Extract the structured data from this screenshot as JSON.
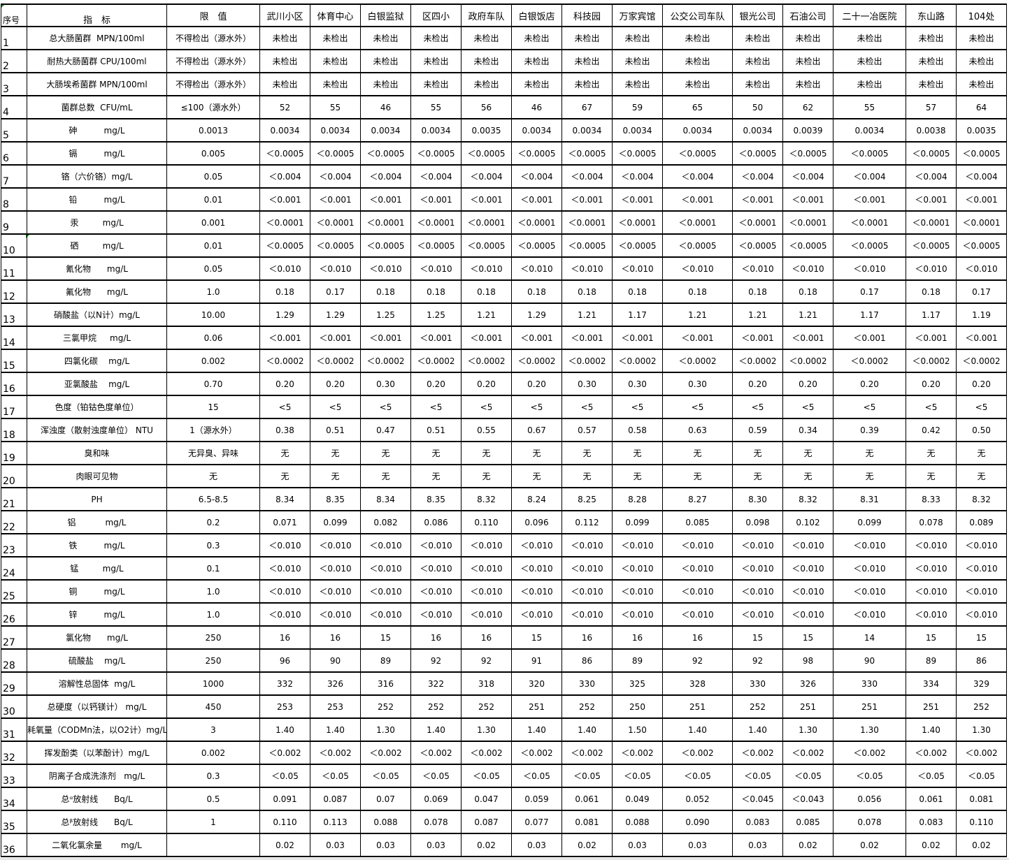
{
  "header": {
    "no": "序号",
    "indicator": "指　标",
    "limit": "限　值",
    "sites": [
      "武川小区",
      "体育中心",
      "白银监狱",
      "区四小",
      "政府车队",
      "白银饭店",
      "科技园",
      "万家宾馆",
      "公交公司车队",
      "银光公司",
      "石油公司",
      "二十一冶医院",
      "东山路",
      "104处"
    ]
  },
  "rows": [
    {
      "no": "1",
      "indicator": "总大肠菌群  MPN/100ml",
      "limit": "不得检出（源水外）",
      "values": [
        "未检出",
        "未检出",
        "未检出",
        "未检出",
        "未检出",
        "未检出",
        "未检出",
        "未检出",
        "未检出",
        "未检出",
        "未检出",
        "未检出",
        "未检出",
        "未检出"
      ]
    },
    {
      "no": "2",
      "indicator": "耐热大肠菌群 CPU/100ml",
      "limit": "不得检出（源水外）",
      "values": [
        "未检出",
        "未检出",
        "未检出",
        "未检出",
        "未检出",
        "未检出",
        "未检出",
        "未检出",
        "未检出",
        "未检出",
        "未检出",
        "未检出",
        "未检出",
        "未检出"
      ]
    },
    {
      "no": "3",
      "indicator": "大肠埃希菌群 MPN/100ml",
      "limit": "不得检出（源水外）",
      "values": [
        "未检出",
        "未检出",
        "未检出",
        "未检出",
        "未检出",
        "未检出",
        "未检出",
        "未检出",
        "未检出",
        "未检出",
        "未检出",
        "未检出",
        "未检出",
        "未检出"
      ]
    },
    {
      "no": "4",
      "indicator": "菌群总数  CFU/mL",
      "limit": "≤100（源水外）",
      "values": [
        "52",
        "55",
        "46",
        "55",
        "56",
        "46",
        "67",
        "59",
        "65",
        "50",
        "62",
        "55",
        "57",
        "64"
      ]
    },
    {
      "no": "5",
      "indicator": "砷          mg/L",
      "limit": "0.0013",
      "values": [
        "0.0034",
        "0.0034",
        "0.0034",
        "0.0034",
        "0.0035",
        "0.0034",
        "0.0034",
        "0.0034",
        "0.0034",
        "0.0034",
        "0.0039",
        "0.0034",
        "0.0038",
        "0.0035"
      ]
    },
    {
      "no": "6",
      "indicator": "镉          mg/L",
      "limit": "0.005",
      "values": [
        "＜0.0005",
        "＜0.0005",
        "＜0.0005",
        "＜0.0005",
        "＜0.0005",
        "＜0.0005",
        "＜0.0005",
        "＜0.0005",
        "＜0.0005",
        "＜0.0005",
        "＜0.0005",
        "＜0.0005",
        "＜0.0005",
        "＜0.0005"
      ]
    },
    {
      "no": "7",
      "indicator": "铬（六价铬）mg/L",
      "limit": "0.05",
      "values": [
        "＜0.004",
        "＜0.004",
        "＜0.004",
        "＜0.004",
        "＜0.004",
        "＜0.004",
        "＜0.004",
        "＜0.004",
        "＜0.004",
        "＜0.004",
        "＜0.004",
        "＜0.004",
        "＜0.004",
        "＜0.004"
      ]
    },
    {
      "no": "8",
      "indicator": "铅          mg/L",
      "limit": "0.01",
      "values": [
        "＜0.001",
        "＜0.001",
        "＜0.001",
        "＜0.001",
        "＜0.001",
        "＜0.001",
        "＜0.001",
        "＜0.001",
        "＜0.001",
        "＜0.001",
        "＜0.001",
        "＜0.001",
        "＜0.001",
        "＜0.001"
      ]
    },
    {
      "no": "9",
      "indicator": "汞         mg/L",
      "limit": "0.001",
      "values": [
        "＜0.0001",
        "＜0.0001",
        "＜0.0001",
        "＜0.0001",
        "＜0.0001",
        "＜0.0001",
        "＜0.0001",
        "＜0.0001",
        "＜0.0001",
        "＜0.0001",
        "＜0.0001",
        "＜0.0001",
        "＜0.0001",
        "＜0.0001"
      ]
    },
    {
      "no": "10",
      "indicator": "硒         mg/L",
      "limit": "0.01",
      "values": [
        "＜0.0005",
        "＜0.0005",
        "＜0.0005",
        "＜0.0005",
        "＜0.0005",
        "＜0.0005",
        "＜0.0005",
        "＜0.0005",
        "＜0.0005",
        "＜0.0005",
        "＜0.0005",
        "＜0.0005",
        "＜0.0005",
        "＜0.0005"
      ]
    },
    {
      "no": "11",
      "indicator": "氰化物      mg/L",
      "limit": "0.05",
      "values": [
        "＜0.010",
        "＜0.010",
        "＜0.010",
        "＜0.010",
        "＜0.010",
        "＜0.010",
        "＜0.010",
        "＜0.010",
        "＜0.010",
        "＜0.010",
        "＜0.010",
        "＜0.010",
        "＜0.010",
        "＜0.010"
      ]
    },
    {
      "no": "12",
      "indicator": "氟化物      mg/L",
      "limit": "1.0",
      "values": [
        "0.18",
        "0.17",
        "0.18",
        "0.18",
        "0.18",
        "0.18",
        "0.18",
        "0.18",
        "0.18",
        "0.18",
        "0.18",
        "0.17",
        "0.18",
        "0.17"
      ]
    },
    {
      "no": "13",
      "indicator": "硝酸盐（以N计）mg/L",
      "limit": "10.00",
      "values": [
        "1.29",
        "1.29",
        "1.25",
        "1.25",
        "1.21",
        "1.29",
        "1.21",
        "1.17",
        "1.21",
        "1.21",
        "1.21",
        "1.17",
        "1.17",
        "1.19"
      ]
    },
    {
      "no": "14",
      "indicator": "三氯甲烷     mg/L",
      "limit": "0.06",
      "values": [
        "＜0.001",
        "＜0.001",
        "＜0.001",
        "＜0.001",
        "＜0.001",
        "＜0.001",
        "＜0.001",
        "＜0.001",
        "＜0.001",
        "＜0.001",
        "＜0.001",
        "＜0.001",
        "＜0.001",
        "＜0.001"
      ]
    },
    {
      "no": "15",
      "indicator": "四氯化碳    mg/L",
      "limit": "0.002",
      "values": [
        "＜0.0002",
        "＜0.0002",
        "＜0.0002",
        "＜0.0002",
        "＜0.0002",
        "＜0.0002",
        "＜0.0002",
        "＜0.0002",
        "＜0.0002",
        "＜0.0002",
        "＜0.0002",
        "＜0.0002",
        "＜0.0002",
        "＜0.0002"
      ]
    },
    {
      "no": "16",
      "indicator": "亚氯酸盐    mg/L",
      "limit": "0.70",
      "values": [
        "0.20",
        "0.20",
        "0.30",
        "0.20",
        "0.20",
        "0.20",
        "0.30",
        "0.30",
        "0.30",
        "0.20",
        "0.20",
        "0.20",
        "0.20",
        "0.20"
      ]
    },
    {
      "no": "17",
      "indicator": "色度（铂钴色度单位）",
      "limit": "15",
      "values": [
        "<5",
        "<5",
        "<5",
        "<5",
        "<5",
        "<5",
        "<5",
        "<5",
        "<5",
        "<5",
        "<5",
        "<5",
        "<5",
        "<5"
      ]
    },
    {
      "no": "18",
      "indicator": "浑浊度（散射浊度单位） NTU",
      "limit": "1（源水外）",
      "values": [
        "0.38",
        "0.51",
        "0.47",
        "0.51",
        "0.55",
        "0.67",
        "0.57",
        "0.58",
        "0.63",
        "0.59",
        "0.34",
        "0.39",
        "0.42",
        "0.50"
      ]
    },
    {
      "no": "19",
      "indicator": "臭和味",
      "limit": "无异臭、异味",
      "values": [
        "无",
        "无",
        "无",
        "无",
        "无",
        "无",
        "无",
        "无",
        "无",
        "无",
        "无",
        "无",
        "无",
        "无"
      ]
    },
    {
      "no": "20",
      "indicator": "肉眼可见物",
      "limit": "无",
      "values": [
        "无",
        "无",
        "无",
        "无",
        "无",
        "无",
        "无",
        "无",
        "无",
        "无",
        "无",
        "无",
        "无",
        "无"
      ]
    },
    {
      "no": "21",
      "indicator": "PH",
      "limit": "6.5-8.5",
      "values": [
        "8.34",
        "8.35",
        "8.34",
        "8.35",
        "8.32",
        "8.24",
        "8.25",
        "8.28",
        "8.27",
        "8.30",
        "8.32",
        "8.31",
        "8.33",
        "8.32"
      ]
    },
    {
      "no": "22",
      "indicator": "铝           mg/L",
      "limit": "0.2",
      "values": [
        "0.071",
        "0.099",
        "0.082",
        "0.086",
        "0.110",
        "0.096",
        "0.112",
        "0.099",
        "0.085",
        "0.098",
        "0.102",
        "0.099",
        "0.078",
        "0.089"
      ]
    },
    {
      "no": "23",
      "indicator": "铁          mg/L",
      "limit": "0.3",
      "values": [
        "＜0.010",
        "＜0.010",
        "＜0.010",
        "＜0.010",
        "＜0.010",
        "＜0.010",
        "＜0.010",
        "＜0.010",
        "＜0.010",
        "＜0.010",
        "＜0.010",
        "＜0.010",
        "＜0.010",
        "＜0.010"
      ]
    },
    {
      "no": "24",
      "indicator": "锰         mg/L",
      "limit": "0.1",
      "values": [
        "＜0.010",
        "＜0.010",
        "＜0.010",
        "＜0.010",
        "＜0.010",
        "＜0.010",
        "＜0.010",
        "＜0.010",
        "＜0.010",
        "＜0.010",
        "＜0.010",
        "＜0.010",
        "＜0.010",
        "＜0.010"
      ]
    },
    {
      "no": "25",
      "indicator": "铜          mg/L",
      "limit": "1.0",
      "values": [
        "＜0.010",
        "＜0.010",
        "＜0.010",
        "＜0.010",
        "＜0.010",
        "＜0.010",
        "＜0.010",
        "＜0.010",
        "＜0.010",
        "＜0.010",
        "＜0.010",
        "＜0.010",
        "＜0.010",
        "＜0.010"
      ]
    },
    {
      "no": "26",
      "indicator": "锌          mg/L",
      "limit": "1.0",
      "values": [
        "＜0.010",
        "＜0.010",
        "＜0.010",
        "＜0.010",
        "＜0.010",
        "＜0.010",
        "＜0.010",
        "＜0.010",
        "＜0.010",
        "＜0.010",
        "＜0.010",
        "＜0.010",
        "＜0.010",
        "＜0.010"
      ]
    },
    {
      "no": "27",
      "indicator": "氯化物      mg/L",
      "limit": "250",
      "values": [
        "16",
        "16",
        "15",
        "16",
        "16",
        "15",
        "16",
        "16",
        "16",
        "15",
        "15",
        "14",
        "15",
        "15"
      ]
    },
    {
      "no": "28",
      "indicator": "硫酸盐    mg/L",
      "limit": "250",
      "values": [
        "96",
        "90",
        "89",
        "92",
        "92",
        "91",
        "86",
        "89",
        "92",
        "92",
        "98",
        "90",
        "89",
        "86"
      ]
    },
    {
      "no": "29",
      "indicator": "溶解性总固体  mg/L",
      "limit": "1000",
      "values": [
        "332",
        "326",
        "316",
        "322",
        "318",
        "320",
        "330",
        "325",
        "328",
        "330",
        "326",
        "330",
        "334",
        "329"
      ]
    },
    {
      "no": "30",
      "indicator": "总硬度（以钙镁计） mg/L",
      "limit": "450",
      "values": [
        "253",
        "253",
        "252",
        "252",
        "252",
        "251",
        "252",
        "250",
        "251",
        "252",
        "251",
        "251",
        "251",
        "252"
      ]
    },
    {
      "no": "31",
      "indicator": "耗氧量（CODMn法，以O2计）mg/L",
      "limit": "3",
      "values": [
        "1.40",
        "1.40",
        "1.30",
        "1.40",
        "1.30",
        "1.40",
        "1.40",
        "1.50",
        "1.40",
        "1.40",
        "1.30",
        "1.30",
        "1.40",
        "1.30"
      ]
    },
    {
      "no": "32",
      "indicator": "挥发酚类（以苯酚计）mg/L",
      "limit": "0.002",
      "values": [
        "＜0.002",
        "＜0.002",
        "＜0.002",
        "＜0.002",
        "＜0.002",
        "＜0.002",
        "＜0.002",
        "＜0.002",
        "＜0.002",
        "＜0.002",
        "＜0.002",
        "＜0.002",
        "＜0.002",
        "＜0.002"
      ]
    },
    {
      "no": "33",
      "indicator": "阴离子合成洗涤剂   mg/L",
      "limit": "0.3",
      "values": [
        "＜0.05",
        "＜0.05",
        "＜0.05",
        "＜0.05",
        "＜0.05",
        "＜0.05",
        "＜0.05",
        "＜0.05",
        "＜0.05",
        "＜0.05",
        "＜0.05",
        "＜0.05",
        "＜0.05",
        "＜0.05"
      ]
    },
    {
      "no": "34",
      "indicator": "总ᵅ放射线      Bq/L",
      "limit": "0.5",
      "values": [
        "0.091",
        "0.087",
        "0.07",
        "0.069",
        "0.047",
        "0.059",
        "0.061",
        "0.049",
        "0.052",
        "＜0.045",
        "＜0.043",
        "0.056",
        "0.061",
        "0.081"
      ]
    },
    {
      "no": "35",
      "indicator": "总ᵝ放射线      Bq/L",
      "limit": "1",
      "values": [
        "0.110",
        "0.113",
        "0.088",
        "0.078",
        "0.087",
        "0.077",
        "0.081",
        "0.088",
        "0.090",
        "0.083",
        "0.085",
        "0.078",
        "0.083",
        "0.110"
      ]
    },
    {
      "no": "36",
      "indicator": "二氧化氯余量       mg/L",
      "limit": "",
      "values": [
        "0.02",
        "0.03",
        "0.03",
        "0.03",
        "0.02",
        "0.03",
        "0.02",
        "0.03",
        "0.03",
        "0.03",
        "0.02",
        "0.02",
        "0.02",
        "0.02"
      ]
    }
  ]
}
